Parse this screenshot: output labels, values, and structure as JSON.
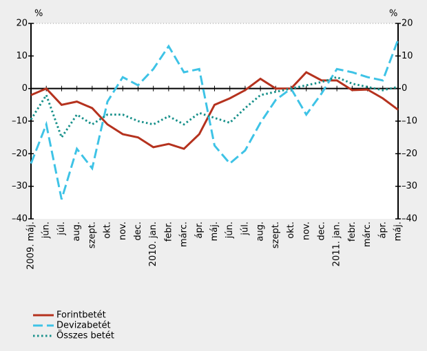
{
  "chart_data": {
    "type": "line",
    "categories": [
      "2009. máj.",
      "jún.",
      "júl.",
      "aug.",
      "szept.",
      "okt.",
      "nov.",
      "dec.",
      "2010. jan.",
      "febr.",
      "márc.",
      "ápr.",
      "máj.",
      "jún.",
      "júl.",
      "aug.",
      "szept.",
      "okt.",
      "nov.",
      "dec.",
      "2011. jan.",
      "febr.",
      "márc.",
      "ápr.",
      "máj."
    ],
    "series": [
      {
        "name": "Forintbetét",
        "color": "#b5321e",
        "style": "solid",
        "values": [
          -2,
          0,
          -5,
          -4,
          -6,
          -11,
          -14,
          -15,
          -18,
          -17,
          -18.5,
          -14,
          -5,
          -3,
          -0.5,
          3,
          0,
          0,
          5,
          2.5,
          2.5,
          -0.5,
          -0.3,
          -3,
          -6.5
        ]
      },
      {
        "name": "Devizabetét",
        "color": "#3ec3e6",
        "style": "dashed",
        "values": [
          -23,
          -11,
          -34,
          -18.5,
          -24.5,
          -4,
          3.5,
          1,
          6,
          13,
          5,
          6,
          -17.5,
          -23,
          -19,
          -10.5,
          -3.5,
          0,
          -8,
          -1.5,
          6,
          5,
          3.5,
          2.5,
          15
        ]
      },
      {
        "name": "Összes betét",
        "color": "#17908a",
        "style": "dotted",
        "values": [
          -9.5,
          -2,
          -15,
          -8,
          -11,
          -8,
          -8,
          -10,
          -11,
          -8.5,
          -11,
          -7.5,
          -9,
          -10.5,
          -6,
          -2,
          -1,
          0,
          1,
          2,
          3.5,
          1.5,
          0.5,
          -0.5,
          0.5
        ]
      }
    ],
    "ylabel": "%",
    "y2label": "%",
    "ylim": [
      -40,
      20
    ],
    "yticks": [
      20,
      10,
      0,
      {
        "value": -10,
        "label": "–10"
      },
      {
        "value": -20,
        "label": "–20"
      },
      {
        "value": -30,
        "label": "–30"
      },
      {
        "value": -40,
        "label": "–40"
      }
    ],
    "y2lim": [
      -40,
      20
    ],
    "y2ticks": [
      20,
      10,
      0,
      {
        "value": -10,
        "label": "–10"
      },
      {
        "value": -20,
        "label": "–20"
      },
      {
        "value": -30,
        "label": "–30"
      },
      {
        "value": -40,
        "label": "–40"
      }
    ],
    "legend": "bottom-left"
  }
}
